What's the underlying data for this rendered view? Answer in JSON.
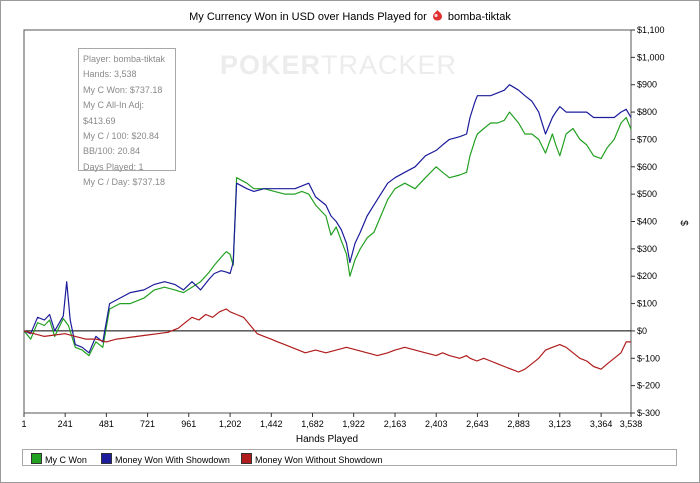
{
  "title_prefix": "My Currency Won in USD over Hands Played for",
  "player_name": "bomba-tiktak",
  "watermark": {
    "bold": "POKER",
    "thin": "TRACKER"
  },
  "info_box": [
    "Player: bomba-tiktak",
    "Hands: 3,538",
    "My C Won: $737.18",
    "My C All-In Adj: $413.69",
    "My C / 100: $20.84",
    "BB/100: 20.84",
    "Days Played: 1",
    "My C / Day: $737.18"
  ],
  "legend": [
    {
      "label": "My C Won",
      "color": "#22a022"
    },
    {
      "label": "Money Won With Showdown",
      "color": "#1c1c9c"
    },
    {
      "label": "Money Won Without Showdown",
      "color": "#b01c1c"
    }
  ],
  "chart_data": {
    "type": "line",
    "xlabel": "Hands Played",
    "ylabel": "$",
    "xlim": [
      1,
      3538
    ],
    "ylim": [
      -300,
      1100
    ],
    "x_ticks": [
      1,
      241,
      481,
      721,
      961,
      1202,
      1442,
      1682,
      1922,
      2163,
      2403,
      2643,
      2883,
      3123,
      3364,
      3538
    ],
    "x_tick_labels": [
      "1",
      "241",
      "481",
      "721",
      "961",
      "1,202",
      "1,442",
      "1,682",
      "1,922",
      "2,163",
      "2,403",
      "2,643",
      "2,883",
      "3,123",
      "3,364",
      "3,538"
    ],
    "y_ticks": [
      -300,
      -200,
      -100,
      0,
      100,
      200,
      300,
      400,
      500,
      600,
      700,
      800,
      900,
      1000,
      1100
    ],
    "y_tick_labels": [
      "$-300",
      "$-200",
      "$-100",
      "$0",
      "$100",
      "$200",
      "$300",
      "$400",
      "$500",
      "$600",
      "$700",
      "$800",
      "$900",
      "$1,000",
      "$1,100"
    ],
    "zero_line": true,
    "grid": false,
    "series": [
      {
        "name": "My C Won",
        "color": "#22a022",
        "points": [
          [
            1,
            0
          ],
          [
            40,
            -30
          ],
          [
            80,
            30
          ],
          [
            120,
            20
          ],
          [
            150,
            40
          ],
          [
            180,
            -20
          ],
          [
            230,
            45
          ],
          [
            260,
            20
          ],
          [
            300,
            -60
          ],
          [
            340,
            -70
          ],
          [
            380,
            -90
          ],
          [
            420,
            -40
          ],
          [
            460,
            -60
          ],
          [
            500,
            80
          ],
          [
            560,
            100
          ],
          [
            620,
            100
          ],
          [
            700,
            120
          ],
          [
            760,
            150
          ],
          [
            820,
            160
          ],
          [
            880,
            150
          ],
          [
            930,
            140
          ],
          [
            980,
            160
          ],
          [
            1030,
            180
          ],
          [
            1080,
            215
          ],
          [
            1110,
            240
          ],
          [
            1150,
            270
          ],
          [
            1180,
            290
          ],
          [
            1202,
            280
          ],
          [
            1220,
            240
          ],
          [
            1240,
            560
          ],
          [
            1300,
            540
          ],
          [
            1340,
            520
          ],
          [
            1400,
            520
          ],
          [
            1460,
            510
          ],
          [
            1520,
            500
          ],
          [
            1580,
            500
          ],
          [
            1620,
            510
          ],
          [
            1660,
            500
          ],
          [
            1700,
            460
          ],
          [
            1760,
            420
          ],
          [
            1790,
            350
          ],
          [
            1820,
            380
          ],
          [
            1850,
            330
          ],
          [
            1880,
            280
          ],
          [
            1900,
            200
          ],
          [
            1930,
            260
          ],
          [
            1960,
            300
          ],
          [
            2000,
            340
          ],
          [
            2040,
            360
          ],
          [
            2080,
            420
          ],
          [
            2120,
            480
          ],
          [
            2163,
            520
          ],
          [
            2220,
            540
          ],
          [
            2280,
            520
          ],
          [
            2340,
            560
          ],
          [
            2403,
            600
          ],
          [
            2440,
            580
          ],
          [
            2480,
            560
          ],
          [
            2540,
            570
          ],
          [
            2580,
            580
          ],
          [
            2600,
            640
          ],
          [
            2630,
            700
          ],
          [
            2643,
            720
          ],
          [
            2680,
            740
          ],
          [
            2720,
            760
          ],
          [
            2760,
            760
          ],
          [
            2800,
            770
          ],
          [
            2830,
            800
          ],
          [
            2883,
            760
          ],
          [
            2920,
            720
          ],
          [
            2960,
            720
          ],
          [
            3000,
            700
          ],
          [
            3040,
            650
          ],
          [
            3080,
            720
          ],
          [
            3100,
            680
          ],
          [
            3123,
            640
          ],
          [
            3160,
            720
          ],
          [
            3200,
            740
          ],
          [
            3240,
            700
          ],
          [
            3280,
            680
          ],
          [
            3320,
            640
          ],
          [
            3364,
            630
          ],
          [
            3400,
            670
          ],
          [
            3440,
            700
          ],
          [
            3480,
            760
          ],
          [
            3510,
            780
          ],
          [
            3538,
            737
          ]
        ]
      },
      {
        "name": "Money Won With Showdown",
        "color": "#1c1c9c",
        "points": [
          [
            1,
            0
          ],
          [
            40,
            -10
          ],
          [
            80,
            50
          ],
          [
            120,
            40
          ],
          [
            150,
            60
          ],
          [
            180,
            0
          ],
          [
            230,
            55
          ],
          [
            250,
            180
          ],
          [
            270,
            40
          ],
          [
            300,
            -50
          ],
          [
            340,
            -60
          ],
          [
            380,
            -80
          ],
          [
            420,
            -20
          ],
          [
            460,
            -40
          ],
          [
            500,
            100
          ],
          [
            560,
            120
          ],
          [
            620,
            140
          ],
          [
            700,
            150
          ],
          [
            760,
            170
          ],
          [
            820,
            180
          ],
          [
            880,
            170
          ],
          [
            930,
            150
          ],
          [
            980,
            180
          ],
          [
            1030,
            150
          ],
          [
            1080,
            190
          ],
          [
            1110,
            210
          ],
          [
            1150,
            220
          ],
          [
            1180,
            215
          ],
          [
            1202,
            210
          ],
          [
            1220,
            250
          ],
          [
            1240,
            540
          ],
          [
            1300,
            520
          ],
          [
            1340,
            510
          ],
          [
            1400,
            520
          ],
          [
            1460,
            520
          ],
          [
            1520,
            520
          ],
          [
            1580,
            520
          ],
          [
            1620,
            530
          ],
          [
            1660,
            540
          ],
          [
            1700,
            490
          ],
          [
            1760,
            460
          ],
          [
            1790,
            420
          ],
          [
            1820,
            400
          ],
          [
            1850,
            370
          ],
          [
            1880,
            320
          ],
          [
            1900,
            250
          ],
          [
            1930,
            320
          ],
          [
            1960,
            360
          ],
          [
            2000,
            420
          ],
          [
            2040,
            460
          ],
          [
            2080,
            500
          ],
          [
            2120,
            540
          ],
          [
            2163,
            560
          ],
          [
            2220,
            580
          ],
          [
            2280,
            600
          ],
          [
            2340,
            640
          ],
          [
            2403,
            660
          ],
          [
            2440,
            680
          ],
          [
            2480,
            700
          ],
          [
            2540,
            710
          ],
          [
            2580,
            720
          ],
          [
            2600,
            780
          ],
          [
            2630,
            840
          ],
          [
            2643,
            860
          ],
          [
            2680,
            860
          ],
          [
            2720,
            860
          ],
          [
            2760,
            870
          ],
          [
            2800,
            880
          ],
          [
            2830,
            900
          ],
          [
            2883,
            880
          ],
          [
            2920,
            860
          ],
          [
            2960,
            840
          ],
          [
            3000,
            800
          ],
          [
            3040,
            720
          ],
          [
            3080,
            780
          ],
          [
            3100,
            800
          ],
          [
            3123,
            820
          ],
          [
            3160,
            800
          ],
          [
            3200,
            800
          ],
          [
            3240,
            800
          ],
          [
            3280,
            800
          ],
          [
            3320,
            780
          ],
          [
            3364,
            780
          ],
          [
            3400,
            780
          ],
          [
            3440,
            780
          ],
          [
            3480,
            800
          ],
          [
            3510,
            810
          ],
          [
            3538,
            780
          ]
        ]
      },
      {
        "name": "Money Won Without Showdown",
        "color": "#b01c1c",
        "points": [
          [
            1,
            0
          ],
          [
            60,
            -10
          ],
          [
            120,
            -20
          ],
          [
            180,
            -15
          ],
          [
            240,
            -10
          ],
          [
            300,
            -20
          ],
          [
            360,
            -30
          ],
          [
            420,
            -30
          ],
          [
            480,
            -40
          ],
          [
            540,
            -30
          ],
          [
            600,
            -25
          ],
          [
            660,
            -20
          ],
          [
            720,
            -15
          ],
          [
            780,
            -10
          ],
          [
            840,
            -5
          ],
          [
            900,
            10
          ],
          [
            940,
            30
          ],
          [
            980,
            50
          ],
          [
            1020,
            40
          ],
          [
            1060,
            60
          ],
          [
            1100,
            50
          ],
          [
            1140,
            70
          ],
          [
            1180,
            80
          ],
          [
            1202,
            70
          ],
          [
            1240,
            60
          ],
          [
            1280,
            50
          ],
          [
            1320,
            20
          ],
          [
            1360,
            -10
          ],
          [
            1400,
            -20
          ],
          [
            1440,
            -30
          ],
          [
            1480,
            -40
          ],
          [
            1520,
            -50
          ],
          [
            1560,
            -60
          ],
          [
            1600,
            -70
          ],
          [
            1640,
            -80
          ],
          [
            1700,
            -70
          ],
          [
            1760,
            -80
          ],
          [
            1820,
            -70
          ],
          [
            1880,
            -60
          ],
          [
            1940,
            -70
          ],
          [
            2000,
            -80
          ],
          [
            2060,
            -90
          ],
          [
            2120,
            -80
          ],
          [
            2163,
            -70
          ],
          [
            2220,
            -60
          ],
          [
            2280,
            -70
          ],
          [
            2340,
            -80
          ],
          [
            2403,
            -90
          ],
          [
            2440,
            -80
          ],
          [
            2480,
            -90
          ],
          [
            2540,
            -100
          ],
          [
            2580,
            -90
          ],
          [
            2600,
            -100
          ],
          [
            2640,
            -110
          ],
          [
            2680,
            -100
          ],
          [
            2720,
            -110
          ],
          [
            2760,
            -120
          ],
          [
            2800,
            -130
          ],
          [
            2840,
            -140
          ],
          [
            2883,
            -150
          ],
          [
            2920,
            -140
          ],
          [
            2960,
            -120
          ],
          [
            3000,
            -100
          ],
          [
            3040,
            -70
          ],
          [
            3080,
            -60
          ],
          [
            3123,
            -50
          ],
          [
            3160,
            -60
          ],
          [
            3200,
            -80
          ],
          [
            3240,
            -100
          ],
          [
            3280,
            -110
          ],
          [
            3320,
            -130
          ],
          [
            3364,
            -140
          ],
          [
            3400,
            -120
          ],
          [
            3440,
            -100
          ],
          [
            3480,
            -80
          ],
          [
            3510,
            -40
          ],
          [
            3538,
            -40
          ]
        ]
      }
    ]
  }
}
